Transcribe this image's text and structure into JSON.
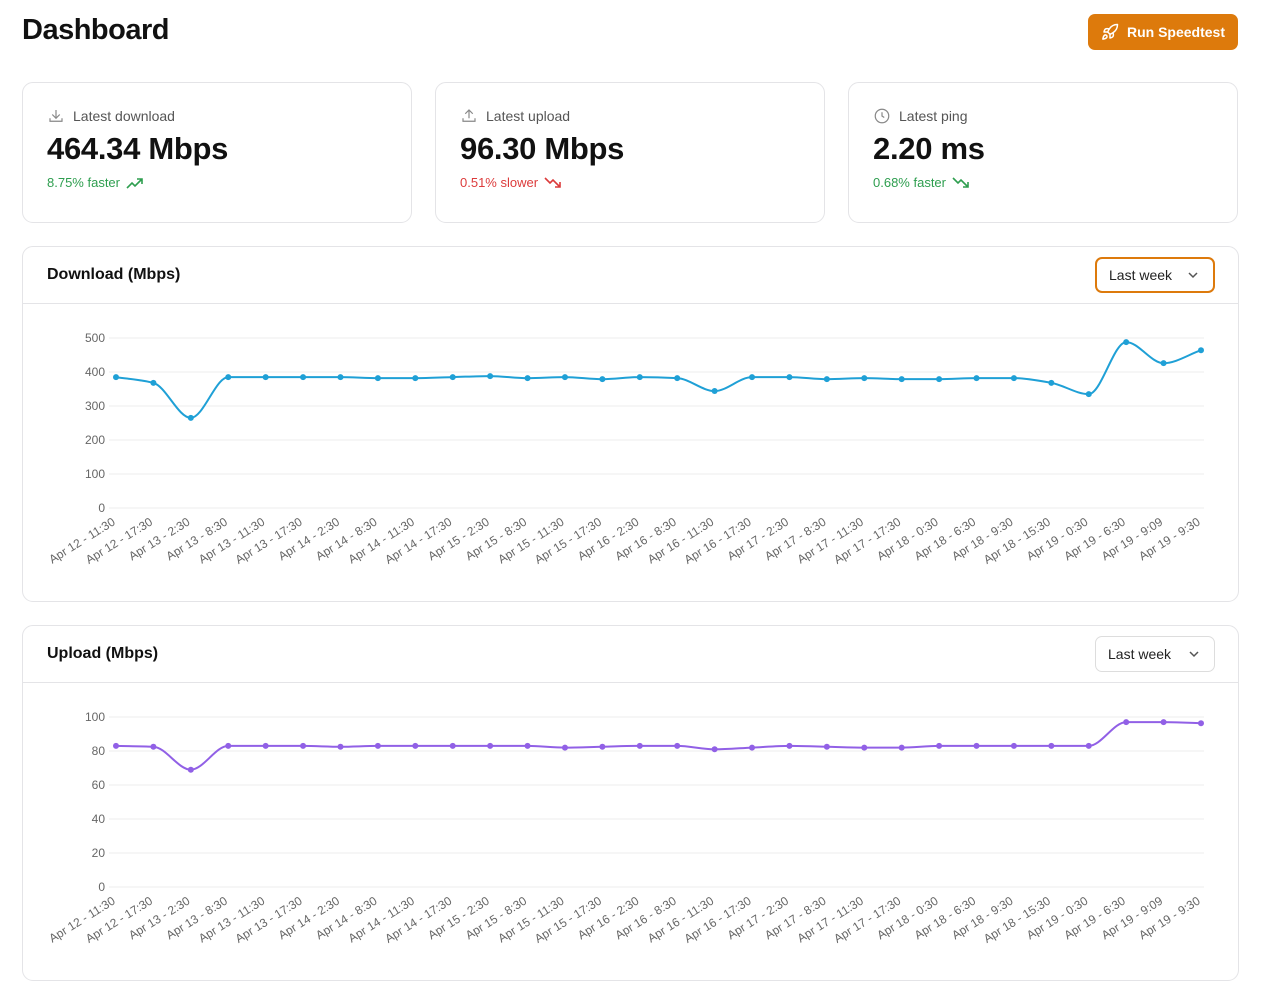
{
  "header": {
    "title": "Dashboard",
    "button": "Run Speedtest"
  },
  "stats": [
    {
      "label": "Latest download",
      "value": "464.34 Mbps",
      "change": "8.75% faster"
    },
    {
      "label": "Latest upload",
      "value": "96.30 Mbps",
      "change": "0.51% slower"
    },
    {
      "label": "Latest ping",
      "value": "2.20 ms",
      "change": "0.68% faster"
    }
  ],
  "chart_data": [
    {
      "type": "line",
      "title": "Download (Mbps)",
      "range": "Last week",
      "color": "#1fa0d6",
      "categories": [
        "Apr 12 - 11:30",
        "Apr 12 - 17:30",
        "Apr 13 - 2:30",
        "Apr 13 - 8:30",
        "Apr 13 - 11:30",
        "Apr 13 - 17:30",
        "Apr 14 - 2:30",
        "Apr 14 - 8:30",
        "Apr 14 - 11:30",
        "Apr 14 - 17:30",
        "Apr 15 - 2:30",
        "Apr 15 - 8:30",
        "Apr 15 - 11:30",
        "Apr 15 - 17:30",
        "Apr 16 - 2:30",
        "Apr 16 - 8:30",
        "Apr 16 - 11:30",
        "Apr 16 - 17:30",
        "Apr 17 - 2:30",
        "Apr 17 - 8:30",
        "Apr 17 - 11:30",
        "Apr 17 - 17:30",
        "Apr 18 - 0:30",
        "Apr 18 - 6:30",
        "Apr 18 - 9:30",
        "Apr 18 - 15:30",
        "Apr 19 - 0:30",
        "Apr 19 - 6:30",
        "Apr 19 - 9:09",
        "Apr 19 - 9:30"
      ],
      "values": [
        385,
        368,
        265,
        385,
        385,
        385,
        385,
        382,
        382,
        385,
        388,
        382,
        385,
        379,
        385,
        382,
        344,
        385,
        385,
        379,
        382,
        379,
        379,
        382,
        382,
        368,
        335,
        488,
        426,
        464
      ],
      "ylim": [
        0,
        500
      ],
      "yticks": [
        0,
        100,
        200,
        300,
        400,
        500
      ],
      "grid": true
    },
    {
      "type": "line",
      "title": "Upload (Mbps)",
      "range": "Last week",
      "color": "#9160e6",
      "categories": [
        "Apr 12 - 11:30",
        "Apr 12 - 17:30",
        "Apr 13 - 2:30",
        "Apr 13 - 8:30",
        "Apr 13 - 11:30",
        "Apr 13 - 17:30",
        "Apr 14 - 2:30",
        "Apr 14 - 8:30",
        "Apr 14 - 11:30",
        "Apr 14 - 17:30",
        "Apr 15 - 2:30",
        "Apr 15 - 8:30",
        "Apr 15 - 11:30",
        "Apr 15 - 17:30",
        "Apr 16 - 2:30",
        "Apr 16 - 8:30",
        "Apr 16 - 11:30",
        "Apr 16 - 17:30",
        "Apr 17 - 2:30",
        "Apr 17 - 8:30",
        "Apr 17 - 11:30",
        "Apr 17 - 17:30",
        "Apr 18 - 0:30",
        "Apr 18 - 6:30",
        "Apr 18 - 9:30",
        "Apr 18 - 15:30",
        "Apr 19 - 0:30",
        "Apr 19 - 6:30",
        "Apr 19 - 9:09",
        "Apr 19 - 9:30"
      ],
      "values": [
        83,
        82.5,
        69,
        83,
        83,
        83,
        82.5,
        83,
        83,
        83,
        83,
        83,
        82,
        82.5,
        83,
        83,
        81,
        82,
        83,
        82.5,
        82,
        82,
        83,
        83,
        83,
        83,
        83,
        97,
        97,
        96.3
      ],
      "ylim": [
        0,
        100
      ],
      "yticks": [
        0,
        20,
        40,
        60,
        80,
        100
      ],
      "grid": true
    }
  ]
}
